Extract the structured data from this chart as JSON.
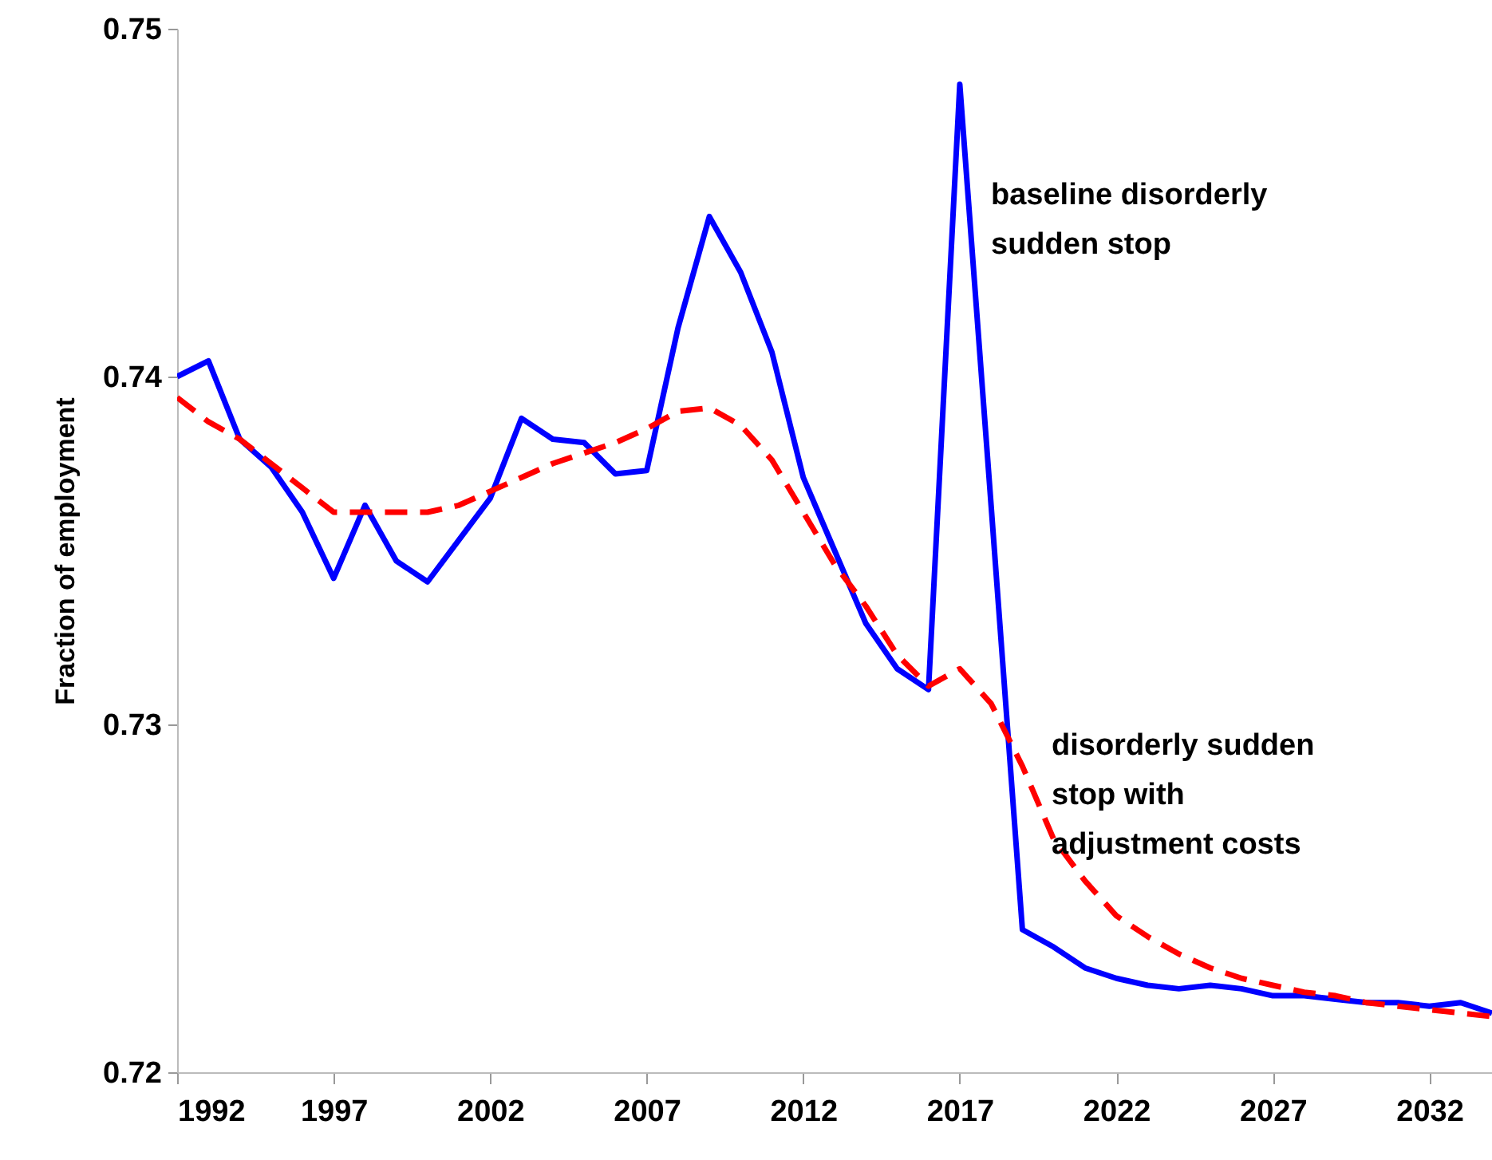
{
  "chart_data": {
    "type": "line",
    "ylabel": "Fraction of employment",
    "x": [
      1992,
      1993,
      1994,
      1995,
      1996,
      1997,
      1998,
      1999,
      2000,
      2001,
      2002,
      2003,
      2004,
      2005,
      2006,
      2007,
      2008,
      2009,
      2010,
      2011,
      2012,
      2013,
      2014,
      2015,
      2016,
      2017,
      2018,
      2019,
      2020,
      2021,
      2022,
      2023,
      2024,
      2025,
      2026,
      2027,
      2028,
      2029,
      2030,
      2031,
      2032,
      2033,
      2034
    ],
    "series": [
      {
        "name": "baseline disorderly sudden stop",
        "color": "#0000ff",
        "line_style": "solid",
        "values": [
          0.74,
          0.74045,
          0.7382,
          0.7374,
          0.7361,
          0.7342,
          0.7363,
          0.7347,
          0.7341,
          0.7353,
          0.7365,
          0.7388,
          0.7382,
          0.7381,
          0.7372,
          0.7373,
          0.7414,
          0.7446,
          0.743,
          0.7407,
          0.7371,
          0.735,
          0.7329,
          0.7316,
          0.731,
          0.7484,
          0.7363,
          0.7241,
          0.7236,
          0.723,
          0.7227,
          0.7225,
          0.7224,
          0.7225,
          0.7224,
          0.7222,
          0.7222,
          0.7221,
          0.722,
          0.722,
          0.7219,
          0.722,
          0.7217
        ]
      },
      {
        "name": "disorderly sudden stop with adjustment costs",
        "color": "#ff0000",
        "line_style": "dashed",
        "values": [
          0.7394,
          0.7387,
          0.7382,
          0.7375,
          0.7368,
          0.7361,
          0.7361,
          0.7361,
          0.7361,
          0.7363,
          0.7367,
          0.7371,
          0.7375,
          0.7378,
          0.7381,
          0.7385,
          0.739,
          0.7391,
          0.7386,
          0.7376,
          0.7361,
          0.7346,
          0.7334,
          0.732,
          0.7311,
          0.7316,
          0.7306,
          0.7288,
          0.7267,
          0.7255,
          0.7245,
          0.7239,
          0.7234,
          0.723,
          0.7227,
          0.7225,
          0.7223,
          0.7222,
          0.722,
          0.7219,
          0.7218,
          0.7217,
          0.7216
        ]
      }
    ],
    "xlim": [
      1992,
      2034
    ],
    "xticks": [
      1992,
      1997,
      2002,
      2007,
      2012,
      2017,
      2022,
      2027,
      2032
    ],
    "ylim": [
      0.72,
      0.75
    ],
    "yticks": [
      0.72,
      0.73,
      0.74,
      0.75
    ],
    "grid": false,
    "legend": false,
    "marker": "none"
  }
}
